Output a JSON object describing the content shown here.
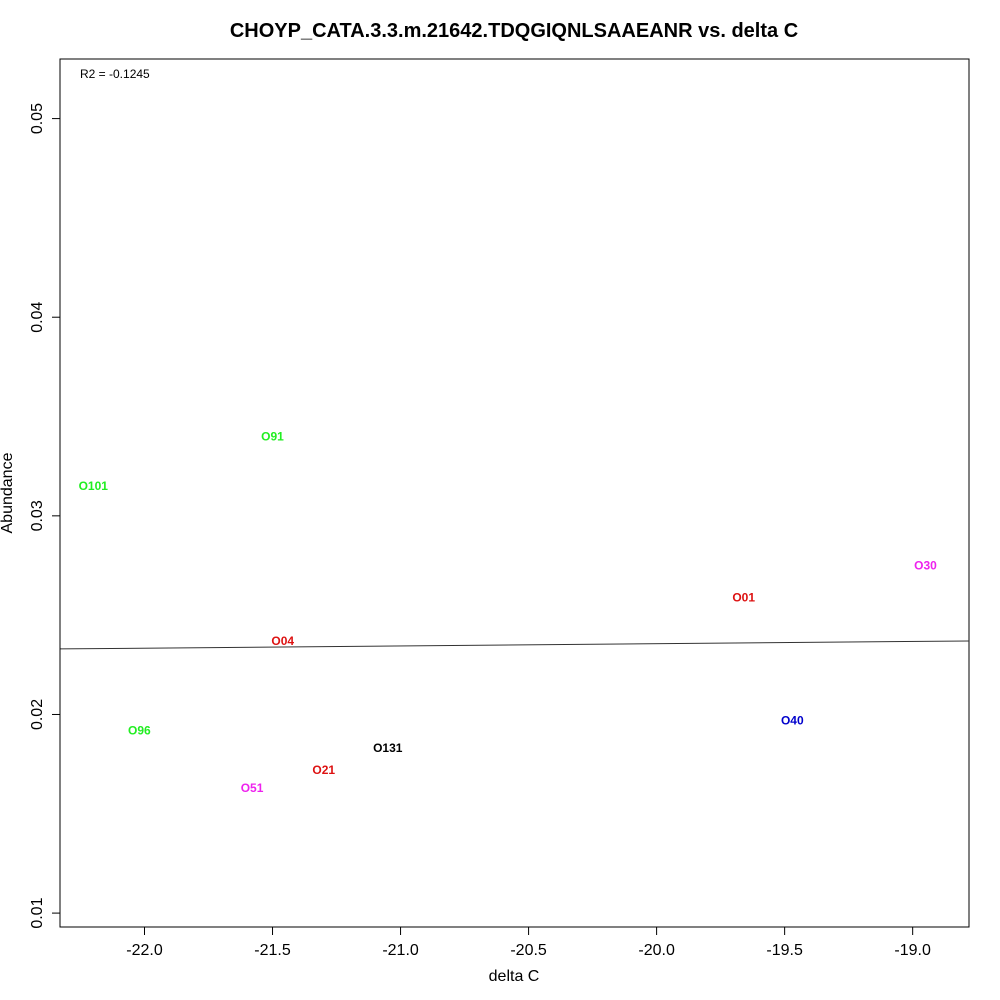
{
  "chart_data": {
    "type": "scatter",
    "title": "CHOYP_CATA.3.3.m.21642.TDQGIQNLSAAEANR vs. delta C",
    "xlabel": "delta C",
    "ylabel": "Abundance",
    "xlim": [
      -22.33,
      -18.78
    ],
    "ylim": [
      0.0093,
      0.053
    ],
    "x_ticks": [
      -22.0,
      -21.5,
      -21.0,
      -20.5,
      -20.0,
      -19.5,
      -19.0
    ],
    "x_tick_labels": [
      "-22.0",
      "-21.5",
      "-21.0",
      "-20.5",
      "-20.0",
      "-19.5",
      "-19.0"
    ],
    "y_ticks": [
      0.01,
      0.02,
      0.03,
      0.04,
      0.05
    ],
    "y_tick_labels": [
      "0.01",
      "0.02",
      "0.03",
      "0.04",
      "0.05"
    ],
    "grid": false,
    "annotation": "R2 = -0.1245",
    "points": [
      {
        "label": "O91",
        "x": -21.5,
        "y": 0.034,
        "color": "#22ee22"
      },
      {
        "label": "O101",
        "x": -22.2,
        "y": 0.0315,
        "color": "#22ee22"
      },
      {
        "label": "O30",
        "x": -18.95,
        "y": 0.0275,
        "color": "#ee22ee"
      },
      {
        "label": "O01",
        "x": -19.66,
        "y": 0.0259,
        "color": "#dd1111"
      },
      {
        "label": "O04",
        "x": -21.46,
        "y": 0.0237,
        "color": "#dd1111"
      },
      {
        "label": "O40",
        "x": -19.47,
        "y": 0.0197,
        "color": "#0000cc"
      },
      {
        "label": "O96",
        "x": -22.02,
        "y": 0.0192,
        "color": "#22ee22"
      },
      {
        "label": "O131",
        "x": -21.05,
        "y": 0.0183,
        "color": "#000000"
      },
      {
        "label": "O21",
        "x": -21.3,
        "y": 0.0172,
        "color": "#dd1111"
      },
      {
        "label": "O51",
        "x": -21.58,
        "y": 0.0163,
        "color": "#ee22ee"
      }
    ],
    "regression_line": {
      "x": [
        -22.33,
        -18.78
      ],
      "y": [
        0.0233,
        0.0237
      ],
      "color": "#333333"
    }
  }
}
